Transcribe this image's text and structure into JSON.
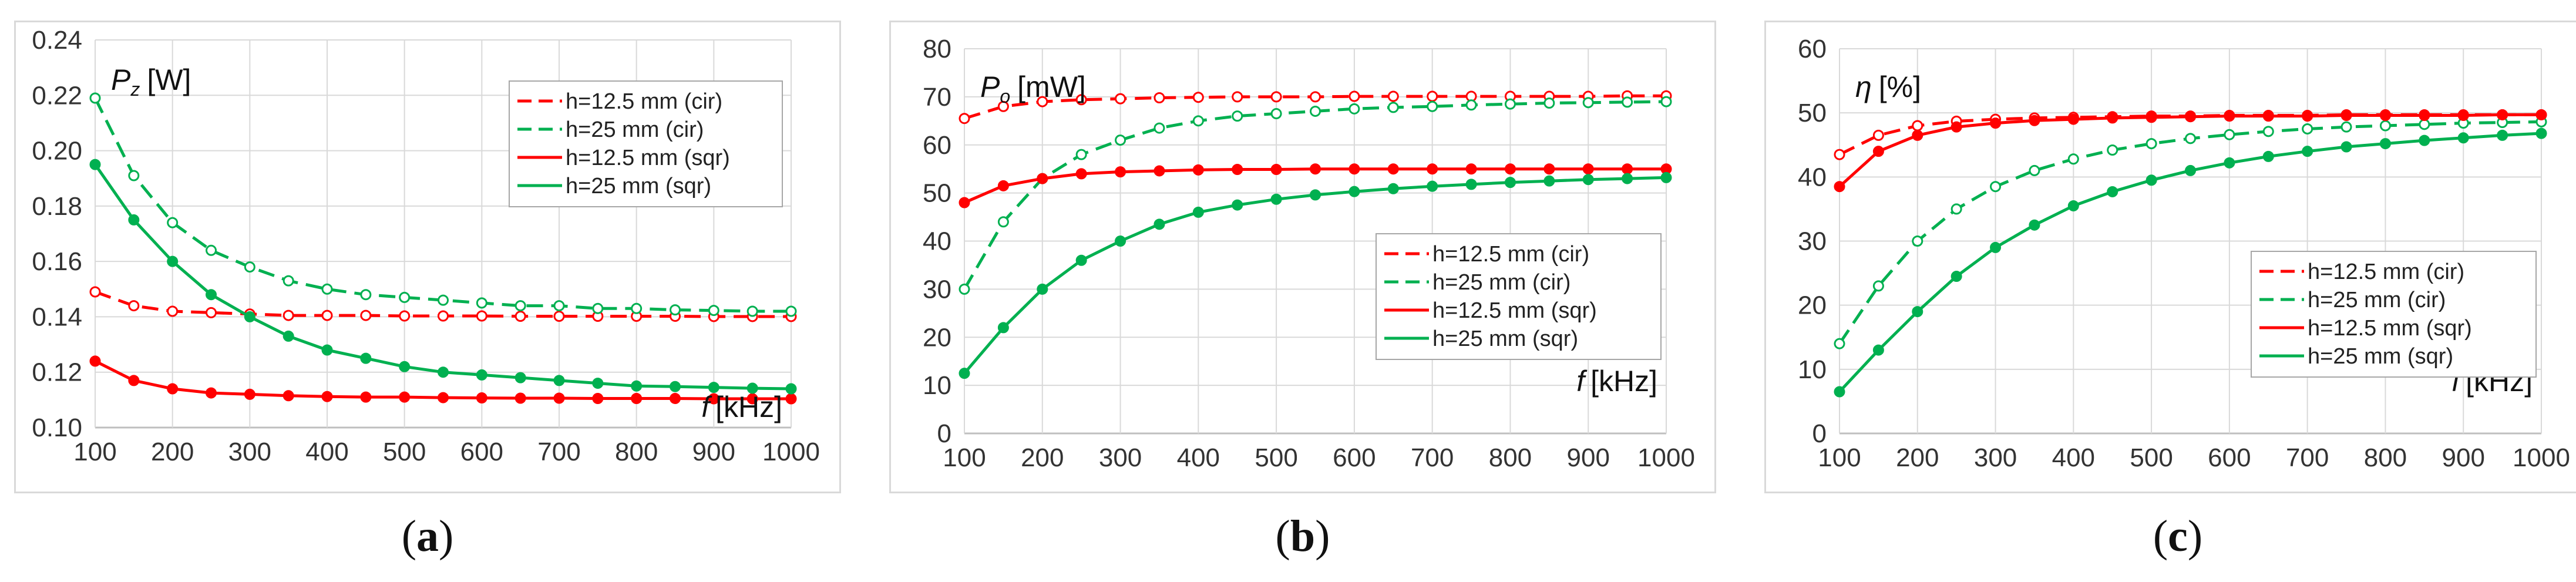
{
  "colors": {
    "red": "#ff0000",
    "green": "#00b050",
    "grid": "#d9d9d9",
    "axis": "#bfbfbf"
  },
  "captions": {
    "a": "a",
    "b": "b",
    "c": "c"
  },
  "chart_data": [
    {
      "type": "line",
      "panel": "a",
      "title": "",
      "ylabel_symbol": "P",
      "ylabel_sub": "z",
      "ylabel_unit": "[W]",
      "xlabel_symbol": "f",
      "xlabel_unit": "[kHz]",
      "xlim": [
        100,
        1000
      ],
      "ylim": [
        0.1,
        0.24
      ],
      "xticks": [
        "100",
        "200",
        "300",
        "400",
        "500",
        "600",
        "700",
        "800",
        "900",
        "1000"
      ],
      "yticks": [
        "0.10",
        "0.12",
        "0.14",
        "0.16",
        "0.18",
        "0.20",
        "0.22",
        "0.24"
      ],
      "legend_position": "top-right",
      "x": [
        100,
        150,
        200,
        250,
        300,
        350,
        400,
        450,
        500,
        550,
        600,
        650,
        700,
        750,
        800,
        850,
        900,
        950,
        1000
      ],
      "series": [
        {
          "name": "h=12.5 mm (cir)",
          "color": "red",
          "dash": true,
          "marker": "open",
          "values": [
            0.149,
            0.144,
            0.142,
            0.1415,
            0.141,
            0.1405,
            0.1405,
            0.1405,
            0.1403,
            0.1403,
            0.1403,
            0.1402,
            0.1402,
            0.1402,
            0.1402,
            0.1402,
            0.1401,
            0.1401,
            0.1401
          ]
        },
        {
          "name": "h=25 mm (cir)",
          "color": "green",
          "dash": true,
          "marker": "open",
          "values": [
            0.219,
            0.191,
            0.174,
            0.164,
            0.158,
            0.153,
            0.15,
            0.148,
            0.147,
            0.146,
            0.145,
            0.144,
            0.144,
            0.143,
            0.143,
            0.1425,
            0.1423,
            0.142,
            0.142
          ]
        },
        {
          "name": "h=12.5 mm (sqr)",
          "color": "red",
          "dash": false,
          "marker": "filled",
          "values": [
            0.124,
            0.117,
            0.114,
            0.1125,
            0.112,
            0.1115,
            0.1112,
            0.111,
            0.111,
            0.1108,
            0.1107,
            0.1106,
            0.1106,
            0.1105,
            0.1105,
            0.1105,
            0.1104,
            0.1104,
            0.1104
          ]
        },
        {
          "name": "h=25 mm (sqr)",
          "color": "green",
          "dash": false,
          "marker": "filled",
          "values": [
            0.195,
            0.175,
            0.16,
            0.148,
            0.14,
            0.133,
            0.128,
            0.125,
            0.122,
            0.12,
            0.119,
            0.118,
            0.117,
            0.116,
            0.115,
            0.1148,
            0.1145,
            0.1142,
            0.114
          ]
        }
      ]
    },
    {
      "type": "line",
      "panel": "b",
      "title": "",
      "ylabel_symbol": "P",
      "ylabel_sub": "o",
      "ylabel_unit": "[mW]",
      "xlabel_symbol": "f",
      "xlabel_unit": "[kHz]",
      "xlim": [
        100,
        1000
      ],
      "ylim": [
        0,
        80
      ],
      "xticks": [
        "100",
        "200",
        "300",
        "400",
        "500",
        "600",
        "700",
        "800",
        "900",
        "1000"
      ],
      "yticks": [
        "0",
        "10",
        "20",
        "30",
        "40",
        "50",
        "60",
        "70",
        "80"
      ],
      "legend_position": "center-right",
      "x": [
        100,
        150,
        200,
        250,
        300,
        350,
        400,
        450,
        500,
        550,
        600,
        650,
        700,
        750,
        800,
        850,
        900,
        950,
        1000
      ],
      "series": [
        {
          "name": "h=12.5 mm (cir)",
          "color": "red",
          "dash": true,
          "marker": "open",
          "values": [
            65.5,
            68,
            69,
            69.4,
            69.6,
            69.8,
            69.9,
            70,
            70,
            70,
            70.1,
            70.1,
            70.1,
            70.1,
            70.1,
            70.1,
            70.1,
            70.2,
            70.2
          ]
        },
        {
          "name": "h=25 mm (cir)",
          "color": "green",
          "dash": true,
          "marker": "open",
          "values": [
            30,
            44,
            53,
            58,
            61,
            63.5,
            65,
            66,
            66.5,
            67,
            67.5,
            67.8,
            68,
            68.3,
            68.5,
            68.7,
            68.8,
            68.9,
            69
          ]
        },
        {
          "name": "h=12.5 mm (sqr)",
          "color": "red",
          "dash": false,
          "marker": "filled",
          "values": [
            48,
            51.5,
            53,
            54,
            54.4,
            54.6,
            54.8,
            54.9,
            54.9,
            55,
            55,
            55,
            55,
            55,
            55,
            55,
            55,
            55,
            55
          ]
        },
        {
          "name": "h=25 mm (sqr)",
          "color": "green",
          "dash": false,
          "marker": "filled",
          "values": [
            12.5,
            22,
            30,
            36,
            40,
            43.5,
            46,
            47.5,
            48.7,
            49.6,
            50.3,
            50.9,
            51.4,
            51.8,
            52.2,
            52.5,
            52.8,
            53,
            53.2
          ]
        }
      ]
    },
    {
      "type": "line",
      "panel": "c",
      "title": "",
      "ylabel_symbol": "η",
      "ylabel_sub": "",
      "ylabel_unit": "[%]",
      "xlabel_symbol": "f",
      "xlabel_unit": "[kHz]",
      "xlim": [
        100,
        1000
      ],
      "ylim": [
        0,
        60
      ],
      "xticks": [
        "100",
        "200",
        "300",
        "400",
        "500",
        "600",
        "700",
        "800",
        "900",
        "1000"
      ],
      "yticks": [
        "0",
        "10",
        "20",
        "30",
        "40",
        "50",
        "60"
      ],
      "legend_position": "center-right",
      "x": [
        100,
        150,
        200,
        250,
        300,
        350,
        400,
        450,
        500,
        550,
        600,
        650,
        700,
        750,
        800,
        850,
        900,
        950,
        1000
      ],
      "series": [
        {
          "name": "h=12.5 mm (cir)",
          "color": "red",
          "dash": true,
          "marker": "open",
          "values": [
            43.5,
            46.5,
            48,
            48.7,
            49,
            49.2,
            49.3,
            49.4,
            49.5,
            49.5,
            49.6,
            49.6,
            49.6,
            49.7,
            49.7,
            49.7,
            49.7,
            49.7,
            49.7
          ]
        },
        {
          "name": "h=25 mm (cir)",
          "color": "green",
          "dash": true,
          "marker": "open",
          "values": [
            14,
            23,
            30,
            35,
            38.5,
            41,
            42.8,
            44.2,
            45.2,
            46,
            46.6,
            47.1,
            47.5,
            47.8,
            48,
            48.2,
            48.4,
            48.5,
            48.6
          ]
        },
        {
          "name": "h=12.5 mm (sqr)",
          "color": "red",
          "dash": false,
          "marker": "filled",
          "values": [
            38.5,
            44,
            46.5,
            47.8,
            48.4,
            48.8,
            49,
            49.2,
            49.3,
            49.4,
            49.5,
            49.5,
            49.5,
            49.6,
            49.6,
            49.6,
            49.6,
            49.7,
            49.7
          ]
        },
        {
          "name": "h=25 mm (sqr)",
          "color": "green",
          "dash": false,
          "marker": "filled",
          "values": [
            6.5,
            13,
            19,
            24.5,
            29,
            32.5,
            35.5,
            37.7,
            39.5,
            41,
            42.2,
            43.2,
            44,
            44.7,
            45.2,
            45.7,
            46.1,
            46.5,
            46.8
          ]
        }
      ]
    }
  ]
}
